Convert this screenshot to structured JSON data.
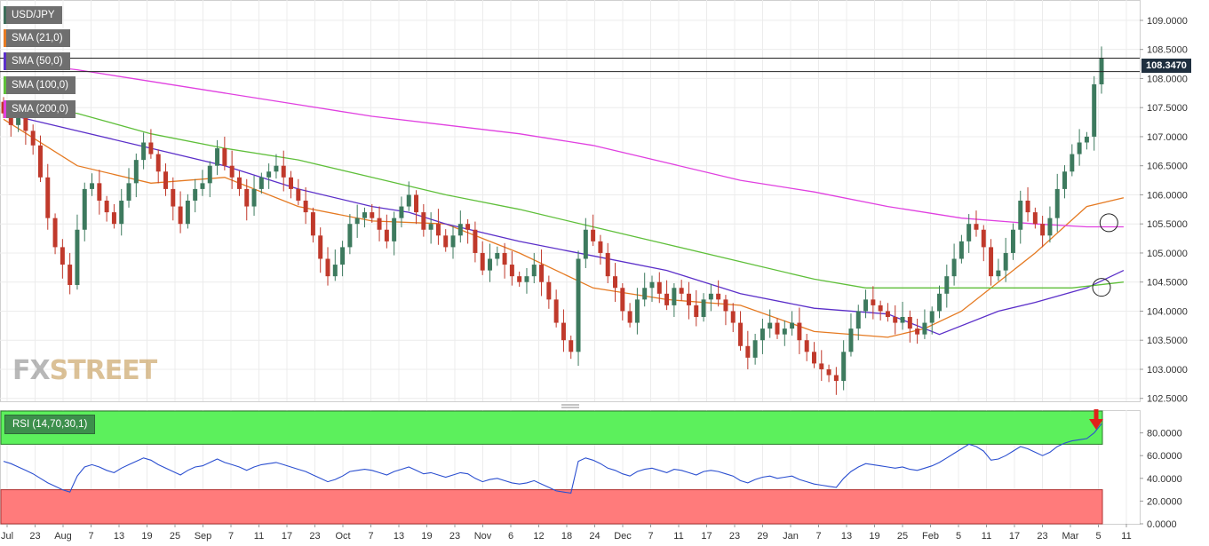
{
  "legend": [
    {
      "label": "USD/JPY",
      "color": "#3e6e5a"
    },
    {
      "label": "SMA (21,0)",
      "color": "#e57a22"
    },
    {
      "label": "SMA (50,0)",
      "color": "#5b2fc9"
    },
    {
      "label": "SMA (100,0)",
      "color": "#5fbf3a"
    },
    {
      "label": "SMA (200,0)",
      "color": "#e040e0"
    }
  ],
  "rsi_label": "RSI (14,70,30,1)",
  "last_price_label": "108.3470",
  "logo": {
    "part1": "FX",
    "part2": "STREET"
  },
  "chart_data": {
    "type": "candlestick",
    "price_axis": {
      "ticks": [
        "109.0000",
        "108.5000",
        "108.0000",
        "107.5000",
        "107.0000",
        "106.5000",
        "106.0000",
        "105.5000",
        "105.0000",
        "104.5000",
        "104.0000",
        "103.5000",
        "103.0000",
        "102.5000"
      ],
      "range": [
        102.45,
        109.35
      ]
    },
    "rsi_axis": {
      "ticks": [
        "80.0000",
        "60.0000",
        "40.0000",
        "20.0000",
        "0.0000"
      ],
      "range": [
        0,
        100
      ],
      "overbought": 70,
      "oversold": 30
    },
    "x_ticks": [
      "Jul",
      "23",
      "Aug",
      "7",
      "13",
      "19",
      "25",
      "Sep",
      "7",
      "11",
      "17",
      "23",
      "Oct",
      "7",
      "13",
      "19",
      "23",
      "Nov",
      "6",
      "12",
      "18",
      "24",
      "Dec",
      "7",
      "11",
      "17",
      "23",
      "29",
      "Jan",
      "7",
      "13",
      "19",
      "25",
      "Feb",
      "5",
      "11",
      "17",
      "23",
      "Mar",
      "5",
      "11"
    ],
    "horizontal_levels": [
      108.35,
      108.12
    ],
    "last_price": 108.347,
    "candles_close": [
      107.4,
      107.2,
      107.35,
      107.1,
      106.85,
      106.3,
      105.6,
      105.1,
      104.8,
      104.45,
      105.4,
      106.1,
      106.2,
      105.9,
      105.7,
      105.5,
      105.9,
      106.2,
      106.6,
      106.9,
      106.7,
      106.4,
      106.1,
      105.8,
      105.5,
      105.9,
      106.1,
      106.2,
      106.5,
      106.8,
      106.5,
      106.3,
      106.1,
      105.8,
      106.1,
      106.3,
      106.4,
      106.5,
      106.3,
      106.1,
      105.9,
      105.7,
      105.3,
      104.9,
      104.6,
      104.8,
      105.1,
      105.5,
      105.6,
      105.7,
      105.6,
      105.4,
      105.2,
      105.6,
      105.8,
      106.0,
      105.7,
      105.4,
      105.5,
      105.3,
      105.1,
      105.3,
      105.5,
      105.4,
      105.0,
      104.7,
      104.9,
      105.0,
      104.8,
      104.6,
      104.5,
      104.6,
      104.8,
      104.5,
      104.2,
      103.8,
      103.5,
      103.3,
      104.9,
      105.4,
      105.2,
      105.0,
      104.6,
      104.4,
      104.0,
      103.8,
      104.2,
      104.4,
      104.5,
      104.3,
      104.1,
      104.4,
      104.3,
      104.1,
      103.9,
      104.2,
      104.3,
      104.2,
      104.0,
      103.8,
      103.4,
      103.2,
      103.5,
      103.7,
      103.8,
      103.6,
      103.7,
      103.8,
      103.5,
      103.3,
      103.1,
      103.0,
      102.9,
      102.8,
      103.3,
      103.7,
      104.0,
      104.2,
      104.1,
      104.0,
      103.9,
      103.8,
      103.9,
      103.7,
      103.6,
      103.8,
      104.0,
      104.3,
      104.6,
      104.9,
      105.2,
      105.5,
      105.4,
      105.1,
      104.6,
      104.7,
      105.0,
      105.4,
      105.9,
      105.7,
      105.5,
      105.3,
      105.6,
      106.1,
      106.4,
      106.7,
      106.9,
      107.0,
      107.9,
      108.35
    ],
    "sma": {
      "SMA (21,0)": [
        [
          0,
          107.3
        ],
        [
          10,
          106.5
        ],
        [
          20,
          106.2
        ],
        [
          30,
          106.3
        ],
        [
          40,
          105.8
        ],
        [
          50,
          105.55
        ],
        [
          60,
          105.5
        ],
        [
          70,
          105.0
        ],
        [
          80,
          104.4
        ],
        [
          90,
          104.2
        ],
        [
          100,
          104.1
        ],
        [
          110,
          103.65
        ],
        [
          120,
          103.55
        ],
        [
          125,
          103.7
        ],
        [
          130,
          104.0
        ],
        [
          135,
          104.5
        ],
        [
          140,
          105.0
        ],
        [
          147,
          105.8
        ],
        [
          152,
          105.95
        ]
      ],
      "SMA (50,0)": [
        [
          0,
          107.4
        ],
        [
          10,
          107.1
        ],
        [
          20,
          106.8
        ],
        [
          30,
          106.5
        ],
        [
          40,
          106.1
        ],
        [
          50,
          105.8
        ],
        [
          55,
          105.7
        ],
        [
          60,
          105.5
        ],
        [
          70,
          105.2
        ],
        [
          80,
          104.95
        ],
        [
          90,
          104.7
        ],
        [
          100,
          104.3
        ],
        [
          110,
          104.05
        ],
        [
          120,
          103.95
        ],
        [
          127,
          103.6
        ],
        [
          135,
          104.0
        ],
        [
          140,
          104.15
        ],
        [
          147,
          104.4
        ],
        [
          152,
          104.7
        ]
      ],
      "SMA (100,0)": [
        [
          0,
          107.6
        ],
        [
          10,
          107.4
        ],
        [
          20,
          107.05
        ],
        [
          30,
          106.8
        ],
        [
          40,
          106.6
        ],
        [
          50,
          106.3
        ],
        [
          60,
          106.0
        ],
        [
          70,
          105.75
        ],
        [
          80,
          105.45
        ],
        [
          90,
          105.15
        ],
        [
          100,
          104.85
        ],
        [
          110,
          104.55
        ],
        [
          117,
          104.4
        ],
        [
          125,
          104.4
        ],
        [
          135,
          104.4
        ],
        [
          145,
          104.4
        ],
        [
          152,
          104.5
        ]
      ],
      "SMA (200,0)": [
        [
          0,
          108.3
        ],
        [
          10,
          108.15
        ],
        [
          20,
          107.95
        ],
        [
          30,
          107.75
        ],
        [
          40,
          107.55
        ],
        [
          50,
          107.35
        ],
        [
          60,
          107.2
        ],
        [
          70,
          107.05
        ],
        [
          80,
          106.85
        ],
        [
          90,
          106.55
        ],
        [
          100,
          106.25
        ],
        [
          110,
          106.05
        ],
        [
          120,
          105.8
        ],
        [
          130,
          105.6
        ],
        [
          140,
          105.5
        ],
        [
          147,
          105.45
        ],
        [
          152,
          105.45
        ]
      ]
    },
    "rsi_values": [
      55,
      53,
      50,
      47,
      44,
      40,
      36,
      33,
      30,
      28,
      42,
      50,
      52,
      50,
      47,
      45,
      49,
      52,
      55,
      58,
      56,
      52,
      49,
      46,
      43,
      47,
      50,
      51,
      54,
      57,
      54,
      52,
      50,
      47,
      50,
      52,
      53,
      54,
      52,
      50,
      48,
      46,
      43,
      40,
      37,
      39,
      42,
      46,
      47,
      48,
      47,
      45,
      43,
      46,
      48,
      50,
      47,
      44,
      45,
      43,
      41,
      43,
      45,
      44,
      40,
      37,
      39,
      40,
      38,
      36,
      35,
      36,
      38,
      35,
      32,
      29,
      28,
      27,
      55,
      58,
      56,
      53,
      49,
      47,
      44,
      42,
      46,
      48,
      49,
      47,
      45,
      48,
      47,
      45,
      43,
      46,
      47,
      46,
      44,
      42,
      38,
      36,
      39,
      41,
      42,
      40,
      41,
      42,
      39,
      37,
      35,
      34,
      33,
      32,
      40,
      46,
      50,
      53,
      52,
      51,
      50,
      49,
      50,
      48,
      47,
      49,
      51,
      54,
      58,
      62,
      66,
      70,
      68,
      64,
      56,
      57,
      60,
      64,
      68,
      66,
      63,
      60,
      63,
      68,
      71,
      73,
      74,
      75,
      80,
      88
    ]
  }
}
